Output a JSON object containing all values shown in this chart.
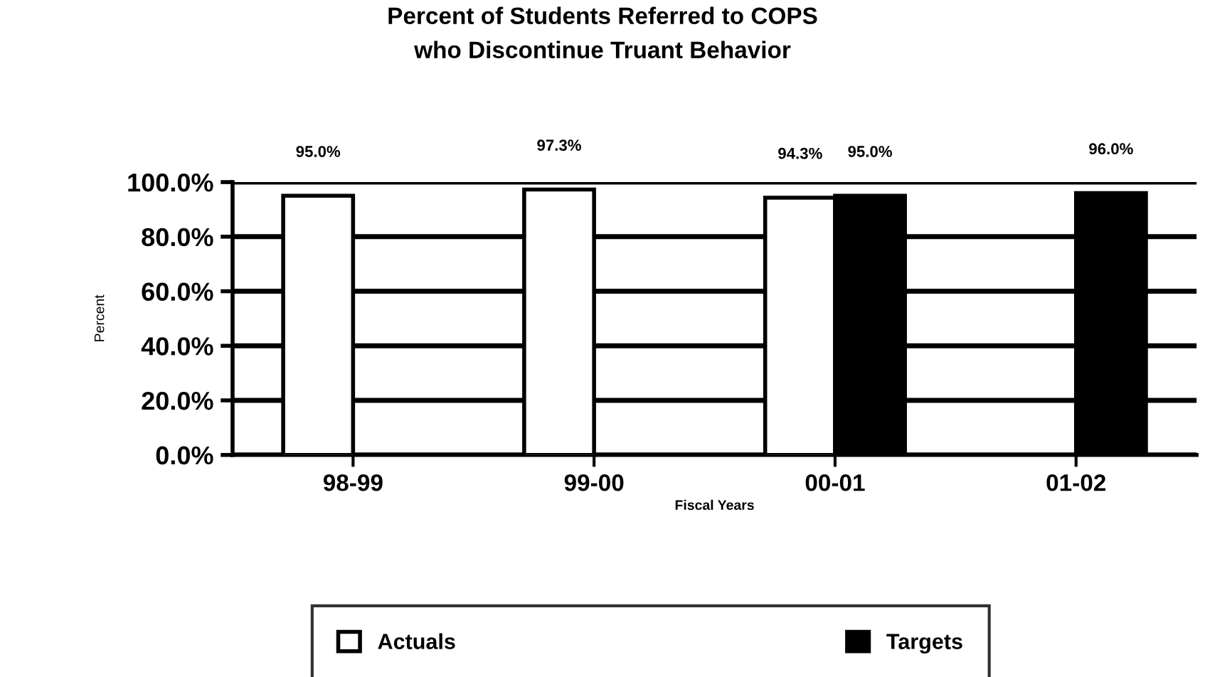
{
  "chart_data": {
    "type": "bar",
    "title": "Percent of Students Referred to COPS\nwho Discontinue Truant Behavior",
    "xlabel": "Fiscal Years",
    "ylabel": "Percent",
    "categories": [
      "98-99",
      "99-00",
      "00-01",
      "01-02"
    ],
    "series": [
      {
        "name": "Actuals",
        "color": "#ffffff",
        "values": [
          95.0,
          97.3,
          94.3,
          null
        ],
        "value_labels": [
          "95.0%",
          "97.3%",
          "94.3%",
          null
        ]
      },
      {
        "name": "Targets",
        "color": "#000000",
        "values": [
          null,
          null,
          95.0,
          96.0
        ],
        "value_labels": [
          null,
          null,
          "95.0%",
          "96.0%"
        ]
      }
    ],
    "ylim": [
      0,
      100
    ],
    "yticks": [
      {
        "value": 0,
        "label": "0.0%"
      },
      {
        "value": 20,
        "label": "20.0%"
      },
      {
        "value": 40,
        "label": "40.0%"
      },
      {
        "value": 60,
        "label": "60.0%"
      },
      {
        "value": 80,
        "label": "80.0%"
      },
      {
        "value": 100,
        "label": "100.0%"
      }
    ],
    "grid": "y",
    "legend": "bottom"
  }
}
